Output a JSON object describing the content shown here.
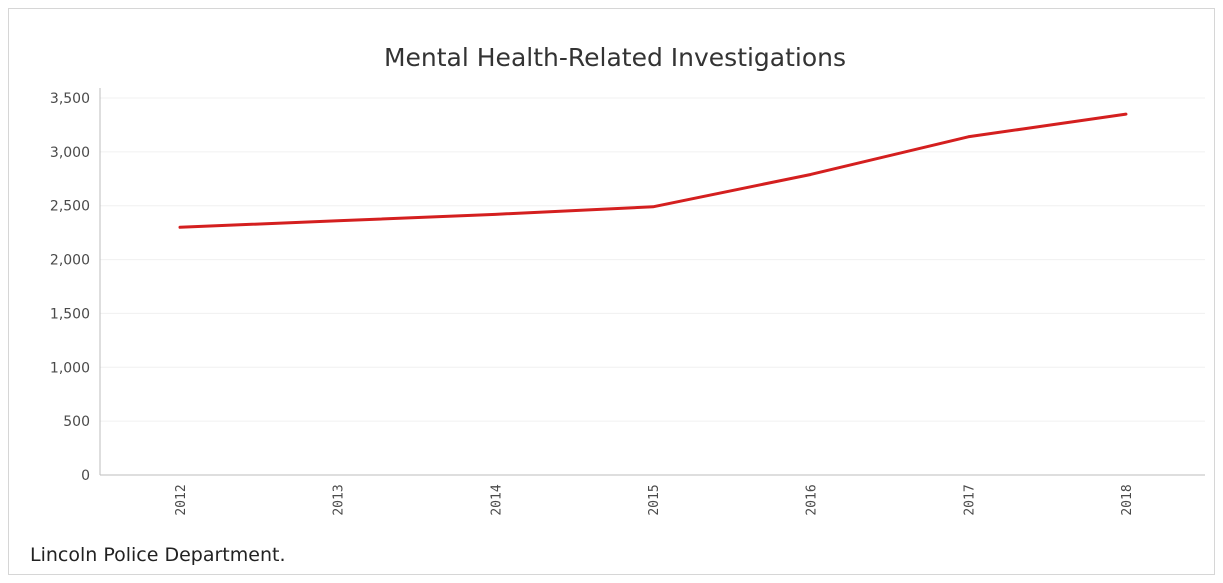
{
  "chart_data": {
    "type": "line",
    "title": "Mental Health-Related Investigations",
    "categories": [
      "2012",
      "2013",
      "2014",
      "2015",
      "2016",
      "2017",
      "2018"
    ],
    "series": [
      {
        "values": [
          2300,
          2360,
          2420,
          2490,
          2790,
          3140,
          3350
        ]
      }
    ],
    "xlabel": "",
    "ylabel": "",
    "ylim": [
      0,
      3500
    ],
    "yticks": [
      "0",
      "500",
      "1,000",
      "1,500",
      "2,000",
      "2,500",
      "3,000",
      "3,500"
    ],
    "grid": true,
    "line_color": "#d41f1f"
  },
  "source": "Lincoln Police Department."
}
